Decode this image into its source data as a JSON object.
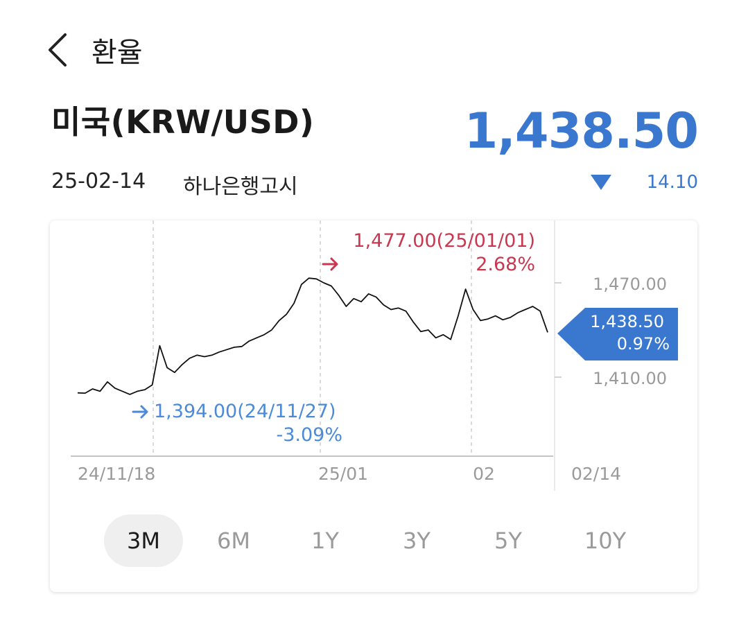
{
  "header": {
    "title": "환율"
  },
  "currency": {
    "name": "미국(KRW/USD)",
    "rate": "1,438.50",
    "date": "25-02-14",
    "source": "하나은행고시",
    "change": "14.10",
    "direction": "down"
  },
  "colors": {
    "accent_blue": "#3a78d0",
    "high_red": "#c8374f",
    "label_blue": "#4a8ad8"
  },
  "chart_data": {
    "type": "line",
    "x_ticks": [
      "24/11/18",
      "25/01",
      "02",
      "02/14"
    ],
    "y_ticks": [
      "1,470.00",
      "1,410.00"
    ],
    "y_range": [
      1385,
      1490
    ],
    "series": [
      {
        "values": [
          1400.0,
          1399.8,
          1402.5,
          1401.0,
          1407.0,
          1403.0,
          1401.0,
          1399.0,
          1401.0,
          1402.0,
          1405.0,
          1430.0,
          1416.0,
          1413.0,
          1418.0,
          1422.0,
          1424.0,
          1423.0,
          1424.0,
          1426.0,
          1427.5,
          1429.0,
          1429.5,
          1433.0,
          1435.0,
          1437.0,
          1440.0,
          1446.0,
          1450.0,
          1457.0,
          1469.0,
          1473.0,
          1472.5,
          1470.0,
          1468.0,
          1462.0,
          1455.0,
          1460.0,
          1458.0,
          1463.0,
          1461.0,
          1456.0,
          1453.0,
          1454.0,
          1452.0,
          1445.0,
          1439.0,
          1440.0,
          1435.0,
          1437.0,
          1434.0,
          1449.0,
          1466.0,
          1453.0,
          1446.0,
          1447.0,
          1449.0,
          1446.5,
          1448.0,
          1451.0,
          1453.0,
          1455.0,
          1452.0,
          1438.5
        ]
      }
    ],
    "max_point": {
      "label": "1,477.00(25/01/01)",
      "pct": "2.68%"
    },
    "min_point": {
      "label": "1,394.00(24/11/27)",
      "pct": "-3.09%"
    },
    "current_point": {
      "value": "1,438.50",
      "pct": "0.97%"
    }
  },
  "periods": [
    {
      "label": "3M",
      "active": true
    },
    {
      "label": "6M",
      "active": false
    },
    {
      "label": "1Y",
      "active": false
    },
    {
      "label": "3Y",
      "active": false
    },
    {
      "label": "5Y",
      "active": false
    },
    {
      "label": "10Y",
      "active": false
    }
  ]
}
